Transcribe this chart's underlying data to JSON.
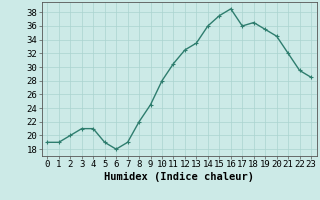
{
  "x": [
    0,
    1,
    2,
    3,
    4,
    5,
    6,
    7,
    8,
    9,
    10,
    11,
    12,
    13,
    14,
    15,
    16,
    17,
    18,
    19,
    20,
    21,
    22,
    23
  ],
  "y": [
    19,
    19,
    20,
    21,
    21,
    19,
    18,
    19,
    22,
    24.5,
    28,
    30.5,
    32.5,
    33.5,
    36,
    37.5,
    38.5,
    36,
    36.5,
    35.5,
    34.5,
    32,
    29.5,
    28.5
  ],
  "line_color": "#2e7d6e",
  "marker_color": "#2e7d6e",
  "bg_color": "#cceae7",
  "grid_color": "#aad4d0",
  "xlabel": "Humidex (Indice chaleur)",
  "ylabel": "",
  "xlim": [
    -0.5,
    23.5
  ],
  "ylim": [
    17,
    39.5
  ],
  "yticks": [
    18,
    20,
    22,
    24,
    26,
    28,
    30,
    32,
    34,
    36,
    38
  ],
  "xticks": [
    0,
    1,
    2,
    3,
    4,
    5,
    6,
    7,
    8,
    9,
    10,
    11,
    12,
    13,
    14,
    15,
    16,
    17,
    18,
    19,
    20,
    21,
    22,
    23
  ],
  "xlabel_fontsize": 7.5,
  "tick_fontsize": 6.5,
  "line_width": 1.0,
  "marker_size": 2.5
}
